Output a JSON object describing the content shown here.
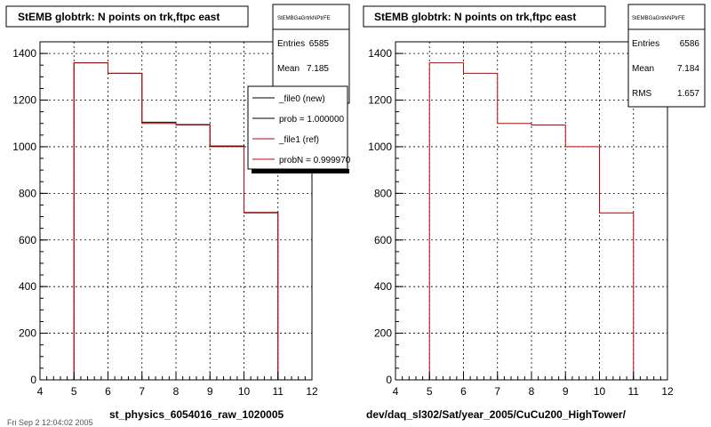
{
  "chart_data": [
    {
      "type": "bar",
      "title": "StEMB globtrk: N points on trk,ftpc east",
      "xlabel": "st_physics_6054016_raw_1020005",
      "xlim": [
        4,
        12
      ],
      "ylim": [
        0,
        1450
      ],
      "x_ticks": [
        4,
        5,
        6,
        7,
        8,
        9,
        10,
        11,
        12
      ],
      "y_ticks": [
        0,
        200,
        400,
        600,
        800,
        1000,
        1200,
        1400
      ],
      "grid": true,
      "bin_edges": [
        4,
        5,
        6,
        7,
        8,
        9,
        10,
        11,
        12
      ],
      "series": [
        {
          "name": "_file0 (new)",
          "color": "#000000",
          "values": [
            0,
            1360,
            1315,
            1105,
            1095,
            1003,
            718,
            0
          ]
        },
        {
          "name": "_file1 (ref)",
          "color": "#cc0000",
          "values": [
            0,
            1360,
            1315,
            1100,
            1093,
            1000,
            716,
            0
          ]
        }
      ],
      "stats": {
        "name": "StEMBGaGrtrkNPtrFE",
        "rows": [
          {
            "label": "Entries",
            "value": "6585"
          },
          {
            "label": "Mean",
            "value": "7.185"
          }
        ]
      },
      "legend": {
        "position": "top-right",
        "entries": [
          {
            "label": "_file0 (new)",
            "color": "#000000"
          },
          {
            "label": "prob = 1.000000",
            "color": "#000000"
          },
          {
            "label": "_file1 (ref)",
            "color": "#cc0000"
          },
          {
            "label": "probN = 0.999970",
            "color": "#cc0000"
          }
        ]
      }
    },
    {
      "type": "bar",
      "title": "StEMB globtrk: N points on trk,ftpc east",
      "xlabel": "dev/daq_sl302/Sat/year_2005/CuCu200_HighTower/",
      "xlim": [
        4,
        12
      ],
      "ylim": [
        0,
        1450
      ],
      "x_ticks": [
        4,
        5,
        6,
        7,
        8,
        9,
        10,
        11,
        12
      ],
      "y_ticks": [
        0,
        200,
        400,
        600,
        800,
        1000,
        1200,
        1400
      ],
      "grid": true,
      "bin_edges": [
        4,
        5,
        6,
        7,
        8,
        9,
        10,
        11,
        12
      ],
      "series": [
        {
          "name": "",
          "color": "#cc0000",
          "values": [
            0,
            1360,
            1315,
            1100,
            1093,
            1000,
            716,
            0
          ]
        }
      ],
      "stats": {
        "name": "StEMBGaGrtrkNPtrFE",
        "rows": [
          {
            "label": "Entries",
            "value": "6586"
          },
          {
            "label": "Mean",
            "value": "7.184"
          },
          {
            "label": "RMS",
            "value": "1.657"
          }
        ]
      }
    }
  ],
  "footer_text": "Fri Sep 2 12:04:02 2005"
}
